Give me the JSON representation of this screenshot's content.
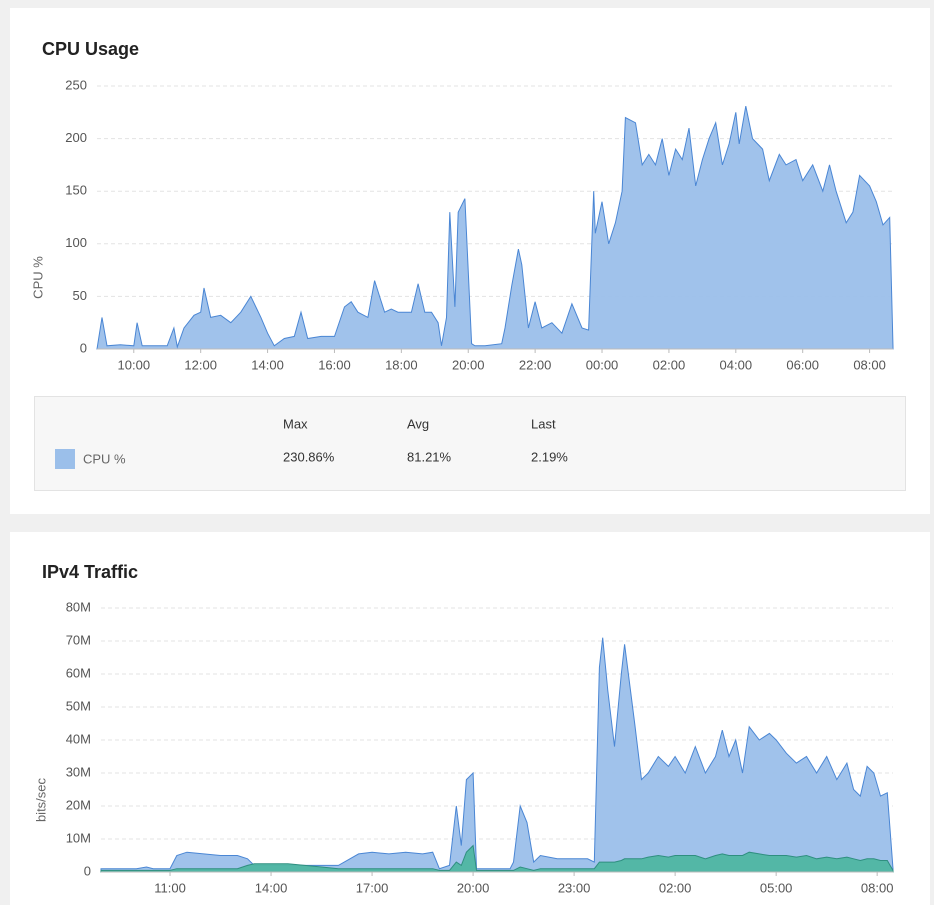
{
  "chart_data": [
    {
      "type": "area",
      "title": "CPU Usage",
      "y_label": "CPU %",
      "x": [
        8.9,
        9.05,
        9.2,
        9.6,
        10.0,
        10.1,
        10.25,
        11.0,
        11.2,
        11.3,
        11.5,
        11.8,
        12.0,
        12.1,
        12.3,
        12.6,
        12.9,
        13.2,
        13.5,
        13.8,
        14.0,
        14.2,
        14.5,
        14.8,
        15.0,
        15.2,
        15.6,
        16.0,
        16.3,
        16.5,
        16.7,
        17.0,
        17.2,
        17.5,
        17.7,
        17.9,
        18.1,
        18.3,
        18.5,
        18.7,
        18.9,
        19.1,
        19.2,
        19.35,
        19.45,
        19.6,
        19.7,
        19.9,
        20.1,
        20.2,
        20.5,
        21.0,
        21.1,
        21.3,
        21.5,
        21.6,
        21.8,
        22.0,
        22.2,
        22.5,
        22.8,
        23.1,
        23.4,
        23.6,
        23.75,
        23.8,
        24.0,
        24.2,
        24.4,
        24.6,
        24.7,
        25.0,
        25.2,
        25.4,
        25.6,
        25.8,
        26.0,
        26.2,
        26.4,
        26.6,
        26.8,
        27.0,
        27.2,
        27.4,
        27.6,
        27.8,
        28.0,
        28.1,
        28.3,
        28.5,
        28.8,
        29.0,
        29.3,
        29.5,
        29.8,
        30.0,
        30.3,
        30.6,
        30.8,
        31.0,
        31.3,
        31.5,
        31.7,
        32.0,
        32.2,
        32.4,
        32.6,
        32.7
      ],
      "series": [
        {
          "name": "CPU %",
          "color": "#9bbfea",
          "line_color": "#4a86d4",
          "values": [
            0,
            30,
            3,
            4,
            3,
            25,
            3,
            3,
            20,
            2,
            20,
            32,
            35,
            58,
            30,
            32,
            25,
            35,
            50,
            30,
            15,
            3,
            10,
            12,
            35,
            10,
            12,
            12,
            40,
            45,
            35,
            30,
            65,
            35,
            38,
            35,
            35,
            35,
            62,
            35,
            35,
            25,
            3,
            30,
            130,
            40,
            130,
            143,
            5,
            3,
            3,
            5,
            20,
            60,
            95,
            80,
            20,
            45,
            20,
            25,
            15,
            43,
            20,
            18,
            150,
            110,
            140,
            100,
            120,
            150,
            220,
            215,
            175,
            185,
            175,
            200,
            165,
            190,
            180,
            210,
            155,
            180,
            200,
            215,
            175,
            195,
            225,
            195,
            230.86,
            200,
            190,
            160,
            185,
            175,
            180,
            160,
            175,
            150,
            175,
            150,
            120,
            130,
            165,
            155,
            140,
            118,
            125,
            2.19
          ]
        }
      ],
      "xlim": [
        8.9,
        32.7
      ],
      "xticks": [
        {
          "value": 10,
          "label": "10:00"
        },
        {
          "value": 12,
          "label": "12:00"
        },
        {
          "value": 14,
          "label": "14:00"
        },
        {
          "value": 16,
          "label": "16:00"
        },
        {
          "value": 18,
          "label": "18:00"
        },
        {
          "value": 20,
          "label": "20:00"
        },
        {
          "value": 22,
          "label": "22:00"
        },
        {
          "value": 24,
          "label": "00:00"
        },
        {
          "value": 26,
          "label": "02:00"
        },
        {
          "value": 28,
          "label": "04:00"
        },
        {
          "value": 30,
          "label": "06:00"
        },
        {
          "value": 32,
          "label": "08:00"
        }
      ],
      "ylim": [
        0,
        250
      ],
      "yticks": [
        0,
        50,
        100,
        150,
        200,
        250
      ],
      "grid": true,
      "summary": {
        "columns": [
          "Max",
          "Avg",
          "Last"
        ],
        "rows": [
          [
            "CPU %",
            "230.86%",
            "81.21%",
            "2.19%"
          ]
        ]
      }
    },
    {
      "type": "area",
      "title": "IPv4 Traffic",
      "y_label": "bits/sec",
      "x": [
        8.95,
        9.5,
        10.0,
        10.3,
        10.5,
        11.0,
        11.2,
        11.5,
        12.0,
        12.5,
        13.0,
        13.3,
        13.5,
        14.0,
        14.5,
        15.0,
        15.5,
        16.0,
        16.6,
        17.0,
        17.5,
        18.0,
        18.5,
        18.8,
        19.0,
        19.3,
        19.5,
        19.65,
        19.8,
        20.0,
        20.1,
        20.5,
        21.1,
        21.2,
        21.4,
        21.6,
        21.8,
        22.0,
        22.5,
        23.0,
        23.4,
        23.6,
        23.75,
        23.85,
        24.0,
        24.2,
        24.4,
        24.5,
        24.8,
        25.0,
        25.2,
        25.5,
        25.8,
        26.0,
        26.3,
        26.6,
        26.9,
        27.2,
        27.4,
        27.6,
        27.8,
        28.0,
        28.2,
        28.5,
        28.8,
        29.0,
        29.3,
        29.6,
        29.9,
        30.2,
        30.5,
        30.8,
        31.1,
        31.3,
        31.5,
        31.7,
        31.9,
        32.1,
        32.3,
        32.47
      ],
      "series": [
        {
          "color": "#9bbfea",
          "line_color": "#4a86d4",
          "values": [
            1000000.0,
            1000000.0,
            1000000.0,
            1500000.0,
            1000000.0,
            1000000.0,
            5000000.0,
            6000000.0,
            5500000.0,
            5000000.0,
            5000000.0,
            4000000.0,
            2000000.0,
            2000000.0,
            2000000.0,
            2000000.0,
            2000000.0,
            2000000.0,
            5500000.0,
            6000000.0,
            5500000.0,
            6000000.0,
            5500000.0,
            6000000.0,
            1000000.0,
            2000000.0,
            20000000.0,
            8000000.0,
            28000000.0,
            30000000.0,
            1000000.0,
            1000000.0,
            1000000.0,
            3000000.0,
            20000000.0,
            15000000.0,
            3000000.0,
            5000000.0,
            4000000.0,
            4000000.0,
            4000000.0,
            3000000.0,
            62000000.0,
            71000000.0,
            55000000.0,
            38000000.0,
            60000000.0,
            69000000.0,
            45000000.0,
            28000000.0,
            30000000.0,
            35000000.0,
            32000000.0,
            35000000.0,
            30000000.0,
            38000000.0,
            30000000.0,
            35000000.0,
            43000000.0,
            35000000.0,
            40000000.0,
            30000000.0,
            44000000.0,
            40000000.0,
            42000000.0,
            40000000.0,
            36000000.0,
            33000000.0,
            35000000.0,
            30000000.0,
            35000000.0,
            28000000.0,
            33000000.0,
            25000000.0,
            23000000.0,
            32000000.0,
            30000000.0,
            23000000.0,
            24000000.0,
            1000000.0
          ]
        },
        {
          "color": "#4fb6a2",
          "line_color": "#2f8f80",
          "values": [
            500000.0,
            500000.0,
            500000.0,
            500000.0,
            500000.0,
            500000.0,
            1000000.0,
            1000000.0,
            1000000.0,
            1000000.0,
            1000000.0,
            2000000.0,
            2500000.0,
            2500000.0,
            2500000.0,
            2000000.0,
            1500000.0,
            1000000.0,
            1000000.0,
            1000000.0,
            1000000.0,
            1000000.0,
            1000000.0,
            1000000.0,
            500000.0,
            500000.0,
            3000000.0,
            2000000.0,
            6000000.0,
            8000000.0,
            500000.0,
            500000.0,
            500000.0,
            500000.0,
            1500000.0,
            1000000.0,
            500000.0,
            1000000.0,
            1000000.0,
            1000000.0,
            1000000.0,
            1000000.0,
            3000000.0,
            3000000.0,
            3000000.0,
            3000000.0,
            3500000.0,
            4000000.0,
            4000000.0,
            4000000.0,
            4500000.0,
            5000000.0,
            4500000.0,
            5000000.0,
            5000000.0,
            5000000.0,
            4000000.0,
            5000000.0,
            5500000.0,
            5000000.0,
            5000000.0,
            5000000.0,
            6000000.0,
            5500000.0,
            5000000.0,
            5000000.0,
            5000000.0,
            4500000.0,
            5000000.0,
            4000000.0,
            4500000.0,
            4000000.0,
            4500000.0,
            4000000.0,
            3500000.0,
            4000000.0,
            4000000.0,
            3500000.0,
            3500000.0,
            500000.0
          ]
        }
      ],
      "xlim": [
        8.95,
        32.47
      ],
      "xticks": [
        {
          "value": 11,
          "label": "11:00"
        },
        {
          "value": 14,
          "label": "14:00"
        },
        {
          "value": 17,
          "label": "17:00"
        },
        {
          "value": 20,
          "label": "20:00"
        },
        {
          "value": 23,
          "label": "23:00"
        },
        {
          "value": 26,
          "label": "02:00"
        },
        {
          "value": 29,
          "label": "05:00"
        },
        {
          "value": 32,
          "label": "08:00"
        }
      ],
      "ylim": [
        0,
        80000000.0
      ],
      "yticks": [
        0,
        {
          "value": 10000000.0,
          "label": "10M"
        },
        {
          "value": 20000000.0,
          "label": "20M"
        },
        {
          "value": 30000000.0,
          "label": "30M"
        },
        {
          "value": 40000000.0,
          "label": "40M"
        },
        {
          "value": 50000000.0,
          "label": "50M"
        },
        {
          "value": 60000000.0,
          "label": "60M"
        },
        {
          "value": 70000000.0,
          "label": "70M"
        },
        {
          "value": 80000000.0,
          "label": "80M"
        }
      ],
      "grid": true
    }
  ]
}
